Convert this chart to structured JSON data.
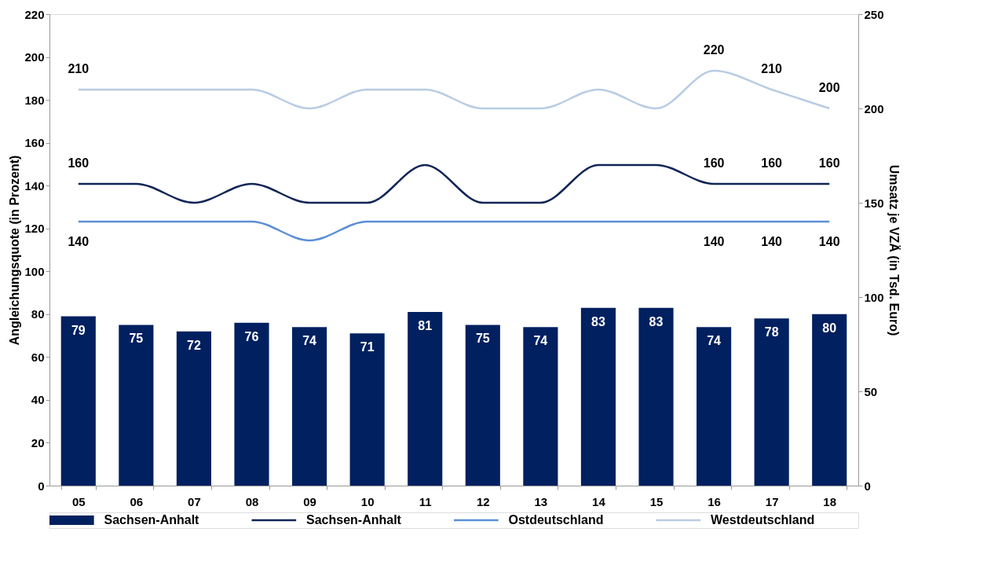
{
  "chart_data": {
    "type": "bar",
    "categories": [
      "05",
      "06",
      "07",
      "08",
      "09",
      "10",
      "11",
      "12",
      "13",
      "14",
      "15",
      "16",
      "17",
      "18"
    ],
    "ylabel": "Angleichungsquote  (in Prozent)",
    "y2label": "Umsatz je VZÄ (in Tsd. Euro)",
    "ylim": [
      0,
      220
    ],
    "yticks": [
      0,
      20,
      40,
      60,
      80,
      100,
      120,
      140,
      160,
      180,
      200,
      220
    ],
    "y2lim": [
      0,
      250
    ],
    "y2ticks": [
      0,
      50,
      100,
      150,
      200,
      250
    ],
    "grid": false,
    "legend": "bottom",
    "series": [
      {
        "name": "Sachsen-Anhalt",
        "color": "#002060",
        "values": [
          79,
          75,
          72,
          76,
          74,
          71,
          81,
          75,
          74,
          83,
          83,
          74,
          78,
          80
        ],
        "value_labels": [
          "79",
          "75",
          "72",
          "76",
          "74",
          "71",
          "81",
          "75",
          "74",
          "83",
          "83",
          "74",
          "78",
          "80"
        ]
      },
      {
        "name": "Sachsen-Anhalt",
        "type": "line",
        "axis": "y2",
        "color": "#0f2557",
        "values": [
          160,
          160,
          150,
          160,
          150,
          150,
          170,
          150,
          150,
          170,
          170,
          160,
          160,
          160
        ],
        "value_labels": [
          "160",
          null,
          null,
          null,
          null,
          null,
          null,
          null,
          null,
          null,
          null,
          "160",
          "160",
          "160"
        ]
      },
      {
        "name": "Ostdeutschland",
        "type": "line",
        "axis": "y2",
        "color": "#5b8fd6",
        "values": [
          140,
          140,
          140,
          140,
          130,
          140,
          140,
          140,
          140,
          140,
          140,
          140,
          140,
          140
        ],
        "value_labels": [
          "140",
          null,
          null,
          null,
          null,
          null,
          null,
          null,
          null,
          null,
          null,
          "140",
          "140",
          "140"
        ]
      },
      {
        "name": "Westdeutschland",
        "type": "line",
        "axis": "y2",
        "color": "#b8cce4",
        "values": [
          210,
          210,
          210,
          210,
          200,
          210,
          210,
          200,
          200,
          210,
          200,
          220,
          210,
          200
        ],
        "value_labels": [
          "210",
          null,
          null,
          null,
          null,
          null,
          null,
          null,
          null,
          null,
          null,
          "220",
          "210",
          "200"
        ]
      }
    ]
  }
}
